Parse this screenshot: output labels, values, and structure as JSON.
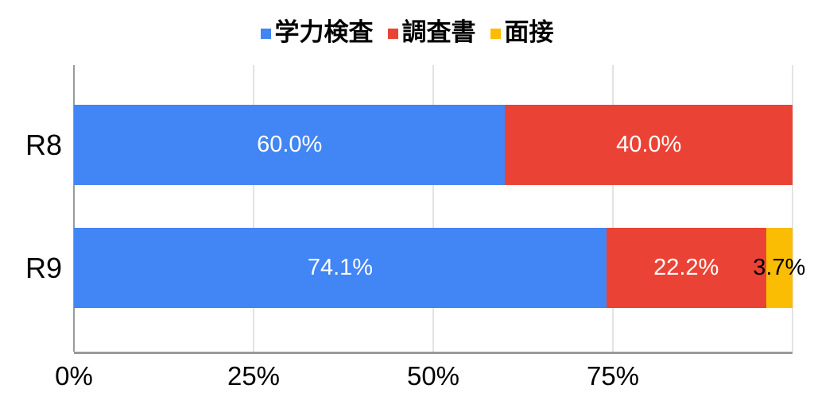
{
  "chart_data": {
    "type": "bar",
    "orientation": "horizontal",
    "stacked": true,
    "title": "",
    "xlabel": "",
    "ylabel": "",
    "legend_position": "top",
    "grid": true,
    "categories": [
      "R8",
      "R9"
    ],
    "series": [
      {
        "name": "学力検査",
        "color": "#4285F4",
        "values": [
          60.0,
          74.1
        ],
        "labels": [
          "60.0%",
          "74.1%"
        ]
      },
      {
        "name": "調査書",
        "color": "#EA4335",
        "values": [
          40.0,
          22.2
        ],
        "labels": [
          "40.0%",
          "22.2%"
        ]
      },
      {
        "name": "面接",
        "color": "#FBBC04",
        "values": [
          0,
          3.7
        ],
        "labels": [
          "",
          "3.7%"
        ]
      }
    ],
    "x_axis": {
      "min": 0,
      "max": 100,
      "ticks": [
        0,
        25,
        50,
        75
      ],
      "tick_labels": [
        "0%",
        "25%",
        "50%",
        "75%"
      ],
      "gridlines_at": [
        0,
        25,
        50,
        75,
        100
      ]
    },
    "data_label_colors": {
      "inside": "#ffffff",
      "small_segment": "#000000"
    },
    "axis_colors": {
      "baseline": "#9a9a9a",
      "gridline": "#e3e3e3",
      "text": "#000000"
    }
  }
}
